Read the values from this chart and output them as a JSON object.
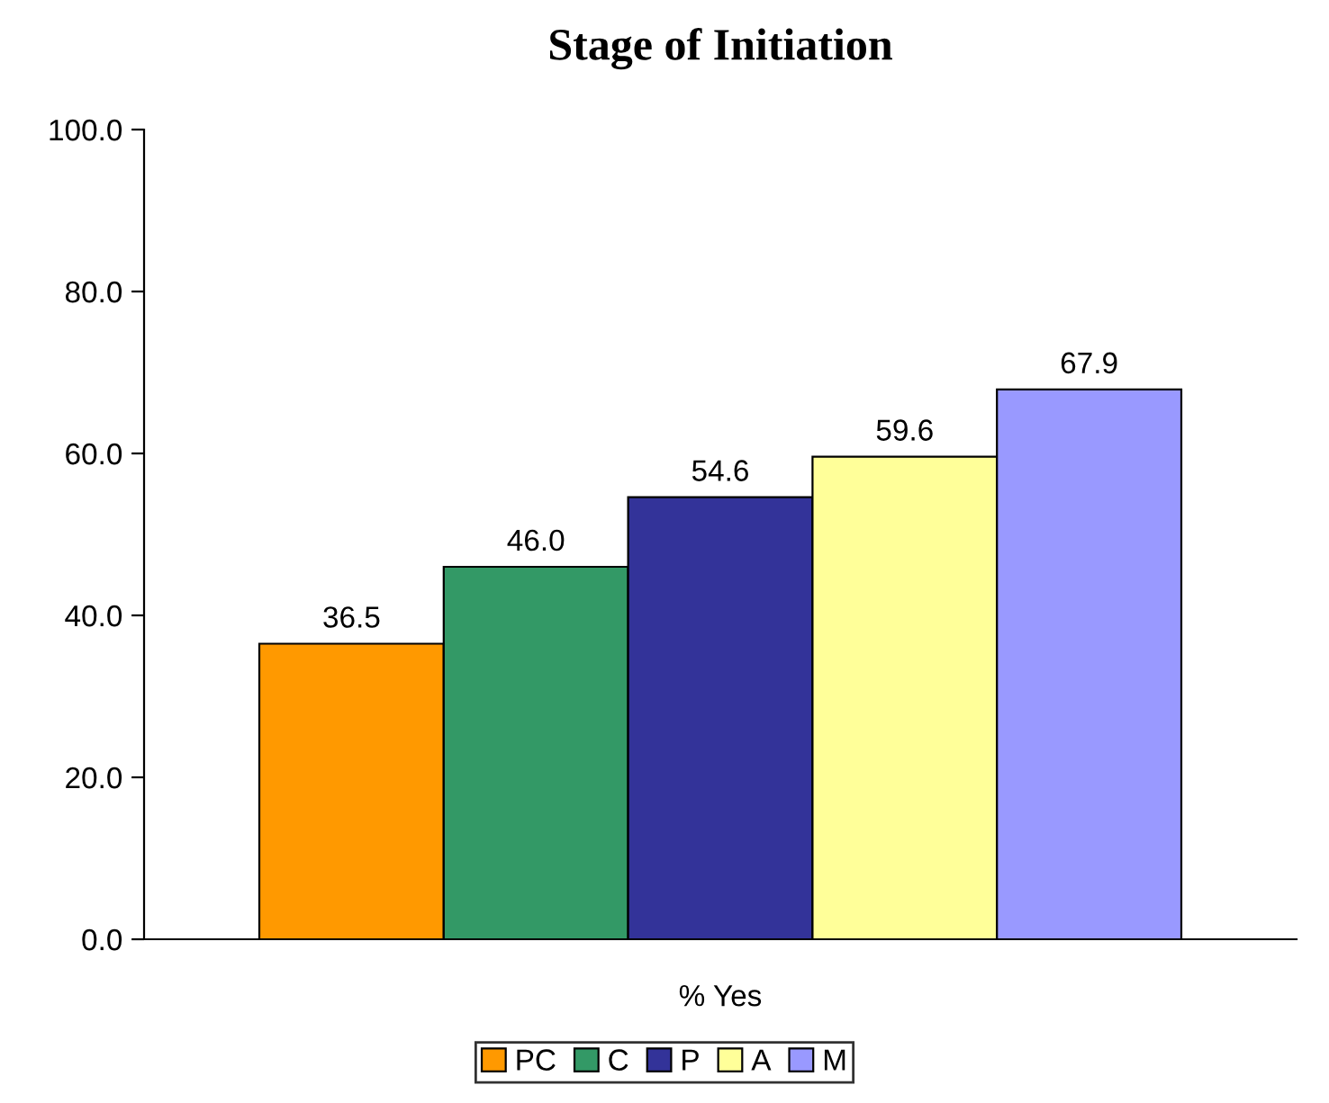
{
  "chart_data": {
    "type": "bar",
    "title": "Stage of Initiation",
    "categories": [
      "% Yes"
    ],
    "series": [
      {
        "name": "PC",
        "color": "#ff9900",
        "values": [
          36.5
        ],
        "value_labels": [
          "36.5"
        ]
      },
      {
        "name": "C",
        "color": "#339966",
        "values": [
          46.0
        ],
        "value_labels": [
          "46.0"
        ]
      },
      {
        "name": "P",
        "color": "#333399",
        "values": [
          54.6
        ],
        "value_labels": [
          "54.6"
        ]
      },
      {
        "name": "A",
        "color": "#ffff99",
        "values": [
          59.6
        ],
        "value_labels": [
          "59.6"
        ]
      },
      {
        "name": "M",
        "color": "#9999ff",
        "values": [
          67.9
        ],
        "value_labels": [
          "67.9"
        ]
      }
    ],
    "ylim": [
      0,
      100
    ],
    "yticks": [
      {
        "value": 0,
        "label": "0.0"
      },
      {
        "value": 20,
        "label": "20.0"
      },
      {
        "value": 40,
        "label": "40.0"
      },
      {
        "value": 60,
        "label": "60.0"
      },
      {
        "value": 80,
        "label": "80.0"
      },
      {
        "value": 100,
        "label": "100.0"
      }
    ],
    "grid": false,
    "legend": "bottom"
  }
}
